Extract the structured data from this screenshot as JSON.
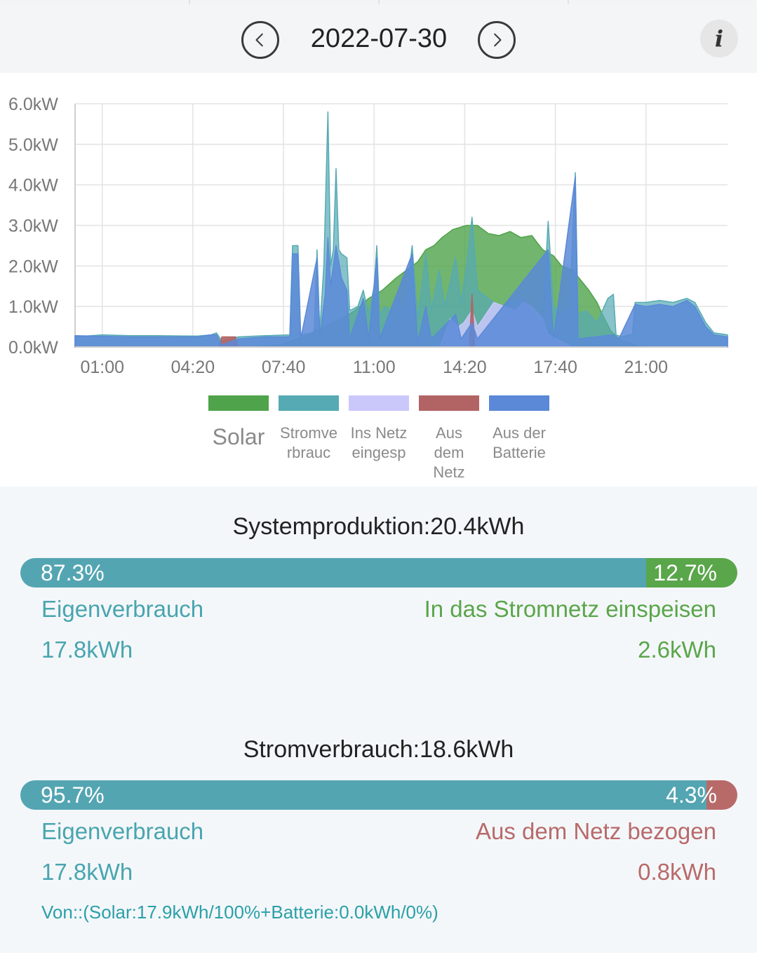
{
  "header": {
    "date": "2022-07-30",
    "prev_icon": "chevron-left-icon",
    "next_icon": "chevron-right-icon",
    "info_glyph": "i"
  },
  "chart_data": {
    "type": "area",
    "x_unit": "time of day (hours)",
    "xlim": [
      0,
      24
    ],
    "ylim": [
      0,
      6
    ],
    "yticks": [
      "0.0kW",
      "1.0kW",
      "2.0kW",
      "3.0kW",
      "4.0kW",
      "5.0kW",
      "6.0kW"
    ],
    "xticks": [
      {
        "label": "01:00",
        "hour": 1.0
      },
      {
        "label": "04:20",
        "hour": 4.333
      },
      {
        "label": "07:40",
        "hour": 7.667
      },
      {
        "label": "11:00",
        "hour": 11.0
      },
      {
        "label": "14:20",
        "hour": 14.333
      },
      {
        "label": "17:40",
        "hour": 17.667
      },
      {
        "label": "21:00",
        "hour": 21.0
      }
    ],
    "grid": true,
    "legend_position": "bottom",
    "series": [
      {
        "name": "Solar",
        "color": "#4fa34a",
        "points": [
          [
            0,
            0
          ],
          [
            6.5,
            0
          ],
          [
            7.5,
            0.05
          ],
          [
            8.2,
            0.2
          ],
          [
            9.2,
            0.5
          ],
          [
            9.8,
            0.7
          ],
          [
            10.3,
            0.9
          ],
          [
            10.8,
            1.2
          ],
          [
            11.3,
            1.4
          ],
          [
            11.8,
            1.7
          ],
          [
            12.2,
            1.9
          ],
          [
            12.6,
            2.1
          ],
          [
            12.9,
            2.4
          ],
          [
            13.2,
            2.5
          ],
          [
            13.5,
            2.7
          ],
          [
            13.9,
            2.9
          ],
          [
            14.4,
            3.0
          ],
          [
            14.8,
            3.0
          ],
          [
            15.2,
            2.8
          ],
          [
            15.6,
            2.75
          ],
          [
            16.0,
            2.85
          ],
          [
            16.4,
            2.7
          ],
          [
            16.8,
            2.75
          ],
          [
            17.2,
            2.4
          ],
          [
            17.6,
            2.25
          ],
          [
            17.9,
            2.0
          ],
          [
            18.3,
            1.9
          ],
          [
            18.6,
            1.65
          ],
          [
            18.9,
            1.4
          ],
          [
            19.2,
            1.1
          ],
          [
            19.4,
            0.8
          ],
          [
            19.7,
            0.4
          ],
          [
            20.1,
            0.15
          ],
          [
            20.6,
            0.05
          ],
          [
            21.0,
            0
          ],
          [
            24,
            0
          ]
        ]
      },
      {
        "name": "Stromverbrauch",
        "color": "#56aab4",
        "points": [
          [
            0,
            0.25
          ],
          [
            1.0,
            0.3
          ],
          [
            2.0,
            0.28
          ],
          [
            3.0,
            0.28
          ],
          [
            4.5,
            0.27
          ],
          [
            5.0,
            0.3
          ],
          [
            5.2,
            0.35
          ],
          [
            5.4,
            0.15
          ],
          [
            6.0,
            0.25
          ],
          [
            7.0,
            0.28
          ],
          [
            7.9,
            0.3
          ],
          [
            8.0,
            2.5
          ],
          [
            8.2,
            2.5
          ],
          [
            8.3,
            0.3
          ],
          [
            8.8,
            0.35
          ],
          [
            8.9,
            2.4
          ],
          [
            9.0,
            0.4
          ],
          [
            9.15,
            2.0
          ],
          [
            9.3,
            5.8
          ],
          [
            9.4,
            2.0
          ],
          [
            9.5,
            2.4
          ],
          [
            9.6,
            4.4
          ],
          [
            9.7,
            2.4
          ],
          [
            9.8,
            2.3
          ],
          [
            10.0,
            2.2
          ],
          [
            10.1,
            0.9
          ],
          [
            10.4,
            1.0
          ],
          [
            10.6,
            1.4
          ],
          [
            10.8,
            0.8
          ],
          [
            11.0,
            1.5
          ],
          [
            11.1,
            2.5
          ],
          [
            11.2,
            0.8
          ],
          [
            11.4,
            1.0
          ],
          [
            11.6,
            0.9
          ],
          [
            11.9,
            1.2
          ],
          [
            12.1,
            0.8
          ],
          [
            12.4,
            2.5
          ],
          [
            12.6,
            0.7
          ],
          [
            12.9,
            2.3
          ],
          [
            13.1,
            0.9
          ],
          [
            13.4,
            1.9
          ],
          [
            13.6,
            1.0
          ],
          [
            14.0,
            2.2
          ],
          [
            14.2,
            1.1
          ],
          [
            14.4,
            2.0
          ],
          [
            14.6,
            3.2
          ],
          [
            14.8,
            1.4
          ],
          [
            15.2,
            1.2
          ],
          [
            15.6,
            1.0
          ],
          [
            16.0,
            1.1
          ],
          [
            16.4,
            1.2
          ],
          [
            16.8,
            0.9
          ],
          [
            17.2,
            0.6
          ],
          [
            17.4,
            3.1
          ],
          [
            17.6,
            1.0
          ],
          [
            17.9,
            0.8
          ],
          [
            18.2,
            1.0
          ],
          [
            18.4,
            4.3
          ],
          [
            18.5,
            0.8
          ],
          [
            18.8,
            0.9
          ],
          [
            19.2,
            0.6
          ],
          [
            19.4,
            0.9
          ],
          [
            19.6,
            1.2
          ],
          [
            19.8,
            1.3
          ],
          [
            19.9,
            0.3
          ],
          [
            20.1,
            0.25
          ],
          [
            20.4,
            0.3
          ],
          [
            20.5,
            0.3
          ],
          [
            20.6,
            1.1
          ],
          [
            21.0,
            1.1
          ],
          [
            21.5,
            1.15
          ],
          [
            22.0,
            1.1
          ],
          [
            22.5,
            1.2
          ],
          [
            22.8,
            1.1
          ],
          [
            23.2,
            0.6
          ],
          [
            23.5,
            0.35
          ],
          [
            24,
            0.3
          ]
        ]
      },
      {
        "name": "Ins Netz eingesp",
        "color": "#cac8fb",
        "points": [
          [
            0,
            0
          ],
          [
            13.4,
            0
          ],
          [
            13.6,
            0.3
          ],
          [
            13.8,
            0.7
          ],
          [
            14.1,
            0.5
          ],
          [
            14.3,
            0.6
          ],
          [
            14.6,
            0.9
          ],
          [
            14.8,
            0.5
          ],
          [
            15.0,
            0.7
          ],
          [
            15.4,
            1.1
          ],
          [
            15.8,
            1.0
          ],
          [
            16.2,
            0.9
          ],
          [
            16.5,
            1.1
          ],
          [
            16.8,
            1.0
          ],
          [
            17.2,
            0.7
          ],
          [
            17.4,
            0.3
          ],
          [
            17.7,
            0.2
          ],
          [
            18.0,
            0.1
          ],
          [
            18.3,
            0
          ],
          [
            24,
            0
          ]
        ]
      },
      {
        "name": "Aus dem Netz",
        "color": "#b26464",
        "points": [
          [
            0,
            0
          ],
          [
            5.3,
            0
          ],
          [
            5.4,
            0.25
          ],
          [
            5.9,
            0.25
          ],
          [
            6.0,
            0
          ],
          [
            14.5,
            0
          ],
          [
            14.6,
            1.3
          ],
          [
            14.7,
            0
          ],
          [
            24,
            0
          ]
        ]
      },
      {
        "name": "Aus der Batterie",
        "color": "#5b89d8",
        "points": [
          [
            0,
            0.28
          ],
          [
            2.0,
            0.25
          ],
          [
            4.5,
            0.25
          ],
          [
            5.0,
            0.3
          ],
          [
            5.2,
            0.3
          ],
          [
            5.4,
            0.05
          ],
          [
            6.0,
            0.2
          ],
          [
            7.0,
            0.25
          ],
          [
            7.9,
            0.25
          ],
          [
            8.0,
            2.3
          ],
          [
            8.2,
            2.3
          ],
          [
            8.3,
            0.2
          ],
          [
            8.9,
            2.2
          ],
          [
            9.0,
            0.2
          ],
          [
            9.2,
            1.3
          ],
          [
            9.3,
            2.7
          ],
          [
            9.4,
            1.5
          ],
          [
            9.6,
            2.5
          ],
          [
            9.8,
            1.7
          ],
          [
            10.0,
            1.4
          ],
          [
            10.1,
            0.2
          ],
          [
            10.6,
            1.2
          ],
          [
            10.8,
            0.2
          ],
          [
            11.1,
            2.2
          ],
          [
            11.2,
            0.2
          ],
          [
            12.4,
            2.3
          ],
          [
            12.6,
            0.1
          ],
          [
            12.9,
            1.0
          ],
          [
            13.1,
            0.2
          ],
          [
            14.0,
            0.8
          ],
          [
            14.2,
            0.2
          ],
          [
            14.6,
            0.6
          ],
          [
            14.8,
            0.2
          ],
          [
            17.4,
            2.4
          ],
          [
            17.6,
            0.2
          ],
          [
            18.4,
            4.2
          ],
          [
            18.5,
            0.2
          ],
          [
            19.8,
            0.3
          ],
          [
            20.0,
            0.2
          ],
          [
            20.6,
            1.05
          ],
          [
            21.0,
            1.0
          ],
          [
            21.5,
            1.05
          ],
          [
            22.0,
            1.0
          ],
          [
            22.5,
            1.15
          ],
          [
            22.8,
            1.0
          ],
          [
            23.2,
            0.5
          ],
          [
            23.5,
            0.3
          ],
          [
            24,
            0.25
          ]
        ]
      }
    ]
  },
  "legend": [
    {
      "label": "Solar",
      "color": "#4fa34a",
      "icon": "solar-swatch"
    },
    {
      "label": "Stromverbrauc",
      "color": "#56aab4",
      "icon": "consumption-swatch"
    },
    {
      "label": "Ins Netz eingesp",
      "color": "#cac8fb",
      "icon": "feed-in-swatch"
    },
    {
      "label": "Aus dem Netz",
      "color": "#b26464",
      "icon": "grid-import-swatch"
    },
    {
      "label": "Aus der Batterie",
      "color": "#5b89d8",
      "icon": "battery-swatch"
    }
  ],
  "production": {
    "title": "Systemproduktion:20.4kWh",
    "left_percent": "87.3%",
    "right_percent": "12.7%",
    "left_fraction": 0.873,
    "left_color": "#54a5b2",
    "right_color": "#5aa64a",
    "left_label": "Eigenverbrauch",
    "right_label": "In das Stromnetz einspeisen",
    "left_value": "17.8kWh",
    "right_value": "2.6kWh"
  },
  "consumption": {
    "title": "Stromverbrauch:18.6kWh",
    "left_percent": "95.7%",
    "right_percent": "4.3%",
    "left_fraction": 0.957,
    "left_color": "#54a5b2",
    "right_color": "#b86a69",
    "left_label": "Eigenverbrauch",
    "right_label": "Aus dem Netz bezogen",
    "left_value": "17.8kWh",
    "right_value": "0.8kWh",
    "source": "Von::(Solar:17.9kWh/100%+Batterie:0.0kWh/0%)"
  }
}
